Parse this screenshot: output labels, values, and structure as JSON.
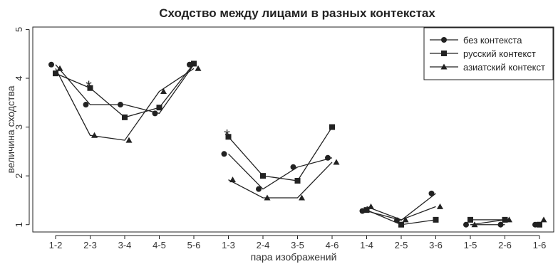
{
  "chart_data": {
    "type": "line",
    "title": "Сходство между лицами в разных контекстах",
    "xlabel": "пара изображений",
    "ylabel": "величина сходства",
    "ylim": [
      0.85,
      5.05
    ],
    "yticks": [
      1,
      2,
      3,
      4,
      5
    ],
    "categories": [
      "1-2",
      "2-3",
      "3-4",
      "4-5",
      "5-6",
      "1-3",
      "2-4",
      "3-5",
      "4-6",
      "1-4",
      "2-5",
      "3-6",
      "1-5",
      "2-6",
      "1-6"
    ],
    "groups": [
      [
        0,
        1,
        2,
        3,
        4
      ],
      [
        5,
        6,
        7,
        8
      ],
      [
        9,
        10,
        11
      ],
      [
        12,
        13
      ],
      [
        14
      ]
    ],
    "series": [
      {
        "name": "без контекста",
        "marker": "circle",
        "values": [
          4.28,
          3.46,
          3.46,
          3.28,
          4.28,
          2.45,
          1.73,
          2.18,
          2.37,
          1.28,
          1.09,
          1.64,
          1.0,
          1.0,
          1.0
        ]
      },
      {
        "name": "русский контекст",
        "marker": "square",
        "values": [
          4.1,
          3.8,
          3.2,
          3.4,
          4.3,
          2.8,
          2.0,
          1.9,
          3.0,
          1.3,
          1.0,
          1.1,
          1.1,
          1.1,
          1.0
        ]
      },
      {
        "name": "азиатский контекст",
        "marker": "triangle",
        "values": [
          4.2,
          2.83,
          2.73,
          3.73,
          4.2,
          1.92,
          1.55,
          1.55,
          2.28,
          1.37,
          1.1,
          1.37,
          1.0,
          1.1,
          1.1
        ]
      }
    ],
    "annotations": [
      {
        "text": "*",
        "category": "2-3",
        "y": 3.9
      },
      {
        "text": "*",
        "category": "1-3",
        "y": 2.9
      }
    ],
    "legend_position": "top-right",
    "grid": false
  }
}
